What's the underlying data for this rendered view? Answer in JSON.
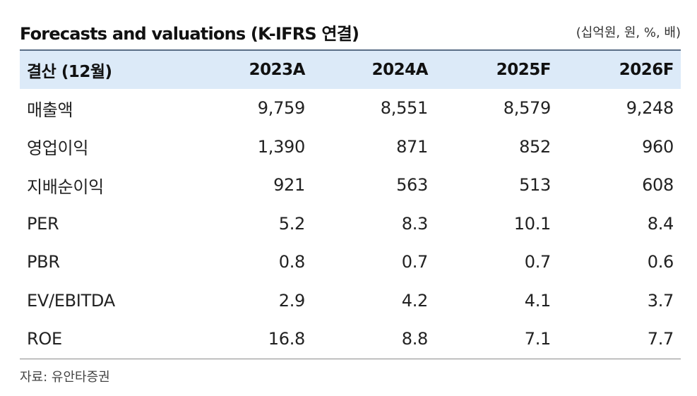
{
  "title": "Forecasts and valuations (K-IFRS 연결)",
  "units": "(십억원, 원, %, 배)",
  "table": {
    "headers": [
      "결산 (12월)",
      "2023A",
      "2024A",
      "2025F",
      "2026F"
    ],
    "rows": [
      [
        "매출액",
        "9,759",
        "8,551",
        "8,579",
        "9,248"
      ],
      [
        "영업이익",
        "1,390",
        "871",
        "852",
        "960"
      ],
      [
        "지배순이익",
        "921",
        "563",
        "513",
        "608"
      ],
      [
        "PER",
        "5.2",
        "8.3",
        "10.1",
        "8.4"
      ],
      [
        "PBR",
        "0.8",
        "0.7",
        "0.7",
        "0.6"
      ],
      [
        "EV/EBITDA",
        "2.9",
        "4.2",
        "4.1",
        "3.7"
      ],
      [
        "ROE",
        "16.8",
        "8.8",
        "7.1",
        "7.7"
      ]
    ]
  },
  "source": "자료: 유안타증권"
}
